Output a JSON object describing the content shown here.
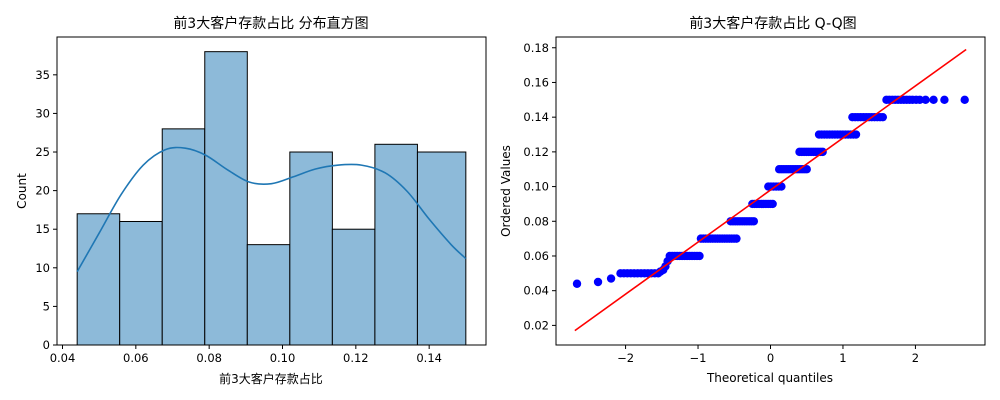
{
  "chart_data": [
    {
      "type": "bar",
      "subtype": "histogram",
      "title": "前3大客户存款占比 分布直方图",
      "xlabel": "前3大客户存款占比",
      "ylabel": "Count",
      "xlim": [
        0.0385,
        0.1555
      ],
      "ylim": [
        0,
        39.9
      ],
      "bin_edges": [
        0.044,
        0.0556,
        0.0672,
        0.0788,
        0.0904,
        0.102,
        0.1136,
        0.1252,
        0.1368,
        0.15
      ],
      "values": [
        17,
        16,
        28,
        38,
        13,
        25,
        15,
        26,
        25
      ],
      "kde": {
        "x": [
          0.044,
          0.05,
          0.056,
          0.062,
          0.068,
          0.0735,
          0.079,
          0.085,
          0.091,
          0.097,
          0.103,
          0.109,
          0.115,
          0.1215,
          0.128,
          0.134,
          0.14,
          0.146,
          0.15
        ],
        "y": [
          9.5,
          14.5,
          19.5,
          23.3,
          25.3,
          25.5,
          24.6,
          22.7,
          21.1,
          20.9,
          21.8,
          22.8,
          23.3,
          23.3,
          22.3,
          19.9,
          16.3,
          13.0,
          11.2
        ]
      },
      "xticks": [
        0.04,
        0.06,
        0.08,
        0.1,
        0.12,
        0.14
      ],
      "xtick_labels": [
        "0.04",
        "0.06",
        "0.08",
        "0.10",
        "0.12",
        "0.14"
      ],
      "yticks": [
        0,
        5,
        10,
        15,
        20,
        25,
        30,
        35
      ],
      "ytick_labels": [
        "0",
        "5",
        "10",
        "15",
        "20",
        "25",
        "30",
        "35"
      ],
      "colors": {
        "bar_fill": "#8dbad9",
        "bar_edge": "#000000",
        "kde_line": "#1f77b4"
      },
      "grid": false
    },
    {
      "type": "scatter",
      "subtype": "qq-plot",
      "title": "前3大客户存款占比  Q-Q图",
      "xlabel": "Theoretical quantiles",
      "ylabel": "Ordered Values",
      "xlim": [
        -2.96,
        2.96
      ],
      "ylim": [
        0.0087,
        0.1862
      ],
      "groups": [
        {
          "value": 0.044,
          "x": [
            -2.67
          ]
        },
        {
          "value": 0.045,
          "x": [
            -2.38
          ]
        },
        {
          "value": 0.047,
          "x": [
            -2.2
          ]
        },
        {
          "value": 0.05,
          "x_range": [
            -2.07,
            -1.55
          ],
          "count": 12
        },
        {
          "value": 0.051,
          "x": [
            -1.52
          ]
        },
        {
          "value": 0.052,
          "x": [
            -1.48
          ]
        },
        {
          "value": 0.054,
          "x": [
            -1.45
          ]
        },
        {
          "value": 0.057,
          "x": [
            -1.42
          ]
        },
        {
          "value": 0.06,
          "x_range": [
            -1.39,
            -0.98
          ],
          "count": 13
        },
        {
          "value": 0.07,
          "x_range": [
            -0.96,
            -0.47
          ],
          "count": 16
        },
        {
          "value": 0.08,
          "x_range": [
            -0.55,
            -0.23
          ],
          "count": 11
        },
        {
          "value": 0.09,
          "x_range": [
            -0.25,
            0.03
          ],
          "count": 10
        },
        {
          "value": 0.1,
          "x_range": [
            -0.03,
            0.15
          ],
          "count": 6
        },
        {
          "value": 0.11,
          "x_range": [
            0.12,
            0.5
          ],
          "count": 13
        },
        {
          "value": 0.12,
          "x_range": [
            0.4,
            0.72
          ],
          "count": 11
        },
        {
          "value": 0.13,
          "x_range": [
            0.67,
            1.18
          ],
          "count": 15
        },
        {
          "value": 0.14,
          "x_range": [
            1.13,
            1.55
          ],
          "count": 12
        },
        {
          "value": 0.15,
          "x": [
            1.6,
            1.64,
            1.68,
            1.72,
            1.76,
            1.8,
            1.84,
            1.88,
            1.92,
            1.96,
            2.01,
            2.06,
            2.14,
            2.25,
            2.4,
            2.68
          ]
        }
      ],
      "fit_line": {
        "x": [
          -2.7,
          2.7
        ],
        "y": [
          0.017,
          0.179
        ]
      },
      "xticks": [
        -2,
        -1,
        0,
        1,
        2
      ],
      "xtick_labels": [
        "−2",
        "−1",
        "0",
        "1",
        "2"
      ],
      "yticks": [
        0.02,
        0.04,
        0.06,
        0.08,
        0.1,
        0.12,
        0.14,
        0.16,
        0.18
      ],
      "ytick_labels": [
        "0.02",
        "0.04",
        "0.06",
        "0.08",
        "0.10",
        "0.12",
        "0.14",
        "0.16",
        "0.18"
      ],
      "colors": {
        "points": "#0000ff",
        "line": "#ff0000"
      },
      "grid": false
    }
  ]
}
